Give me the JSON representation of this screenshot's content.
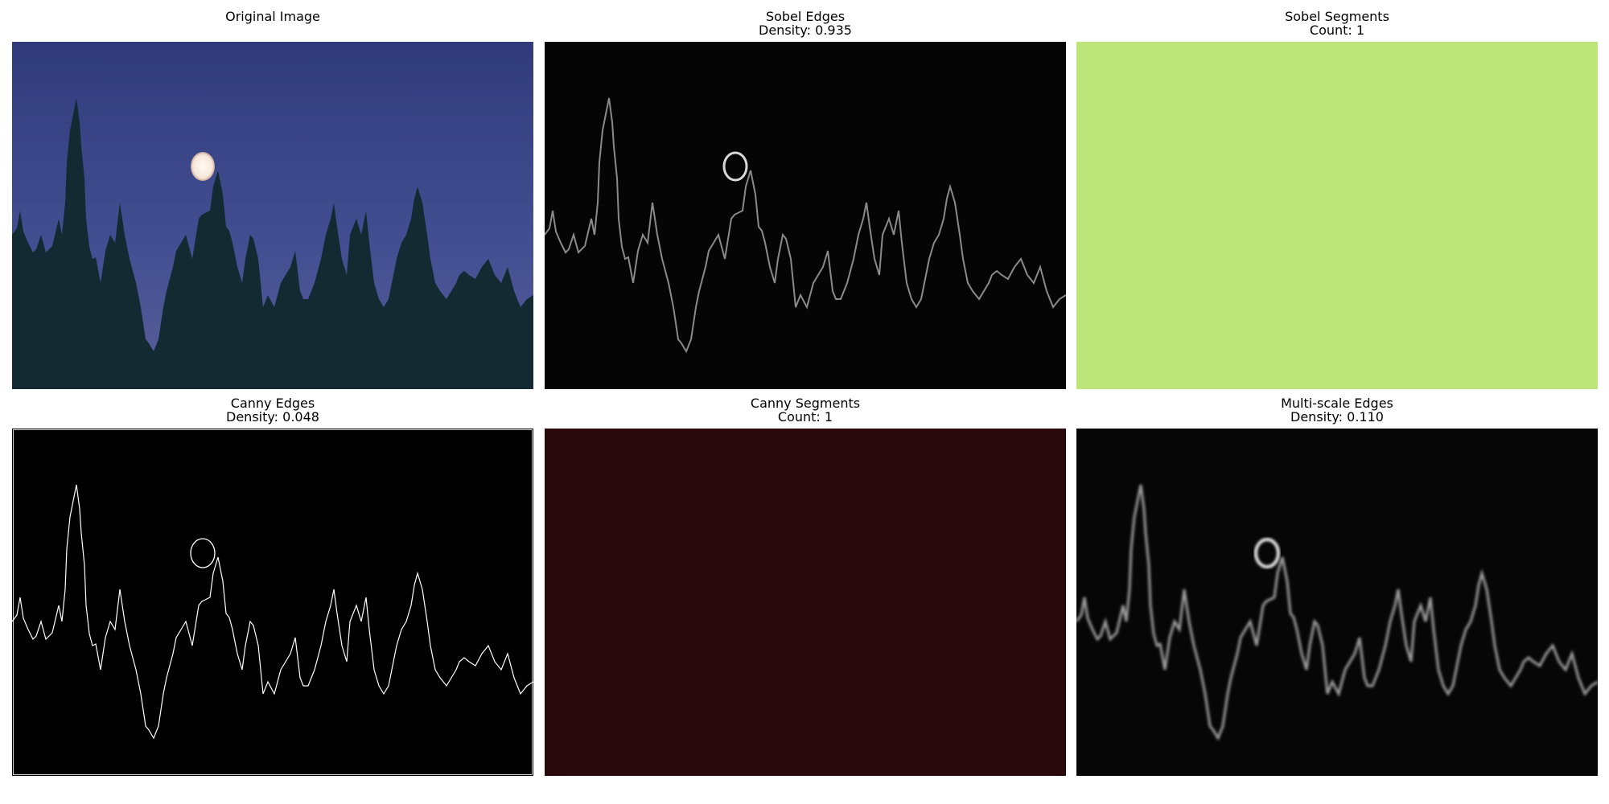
{
  "panels": [
    {
      "title": "Original Image",
      "subtitle": ""
    },
    {
      "title": "Sobel Edges",
      "subtitle": "Density: 0.935"
    },
    {
      "title": "Sobel Segments",
      "subtitle": "Count: 1"
    },
    {
      "title": "Canny Edges",
      "subtitle": "Density: 0.048"
    },
    {
      "title": "Canny Segments",
      "subtitle": "Count: 1"
    },
    {
      "title": "Multi-scale Edges",
      "subtitle": "Density: 0.110"
    }
  ],
  "colors": {
    "sky_top": "#323c7e",
    "sky_bottom": "#4a5596",
    "trees": "#142a33",
    "moon": "#fff4ea",
    "edge_bg": "#000000",
    "sobel_segments_fill": "#bce57a",
    "canny_segments_fill": "#2a090c",
    "edge_line": "#ffffff"
  }
}
